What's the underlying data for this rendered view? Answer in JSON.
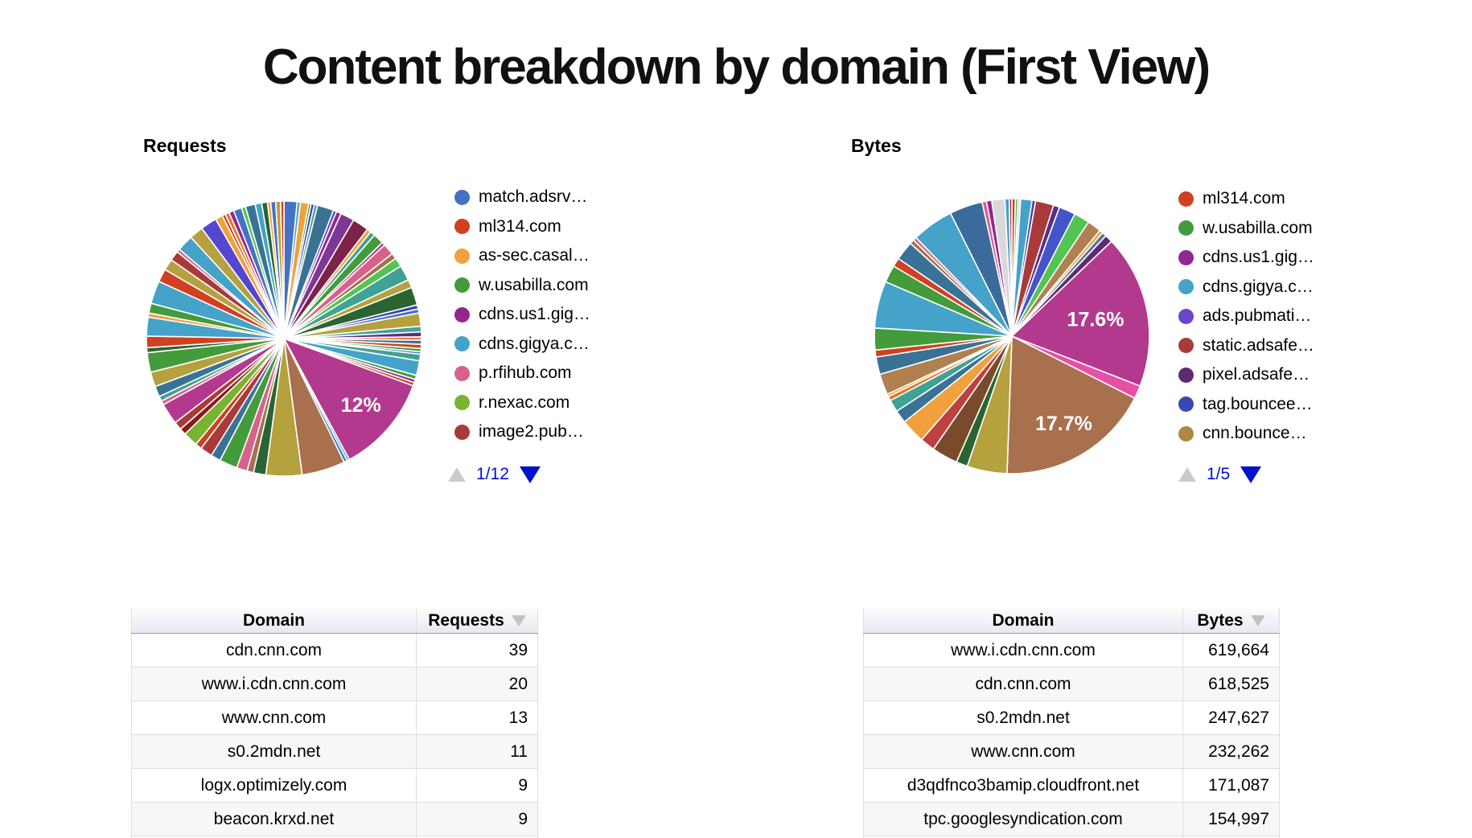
{
  "title": "Content breakdown by domain (First View)",
  "chart_data": [
    {
      "type": "pie",
      "title": "Requests",
      "legend_position": "right",
      "legend_page": "1/12",
      "legend": [
        {
          "label": "match.adsrv…",
          "color": "#4472C4"
        },
        {
          "label": "ml314.com",
          "color": "#CF4120"
        },
        {
          "label": "as-sec.casal…",
          "color": "#F0A13C"
        },
        {
          "label": "w.usabilla.com",
          "color": "#449B3B"
        },
        {
          "label": "cdns.us1.gig…",
          "color": "#94278F"
        },
        {
          "label": "cdns.gigya.c…",
          "color": "#45A2C9"
        },
        {
          "label": "p.rfihub.com",
          "color": "#D8618C"
        },
        {
          "label": "r.nexac.com",
          "color": "#79B430"
        },
        {
          "label": "image2.pub…",
          "color": "#A93A3A"
        }
      ],
      "shown_slice_labels": [
        "12%"
      ],
      "slices": [
        [
          1.6,
          "#4472C4"
        ],
        [
          0.4,
          "#45A2C9"
        ],
        [
          1.0,
          "#F0A13C"
        ],
        [
          0.3,
          "#449B3B"
        ],
        [
          0.4,
          "#3B3EAC"
        ],
        [
          0.4,
          "#3FA294"
        ],
        [
          2.0,
          "#3A7296"
        ],
        [
          0.4,
          "#5546D0"
        ],
        [
          0.6,
          "#94278F"
        ],
        [
          1.7,
          "#7E3794"
        ],
        [
          2.0,
          "#7D2248"
        ],
        [
          0.5,
          "#F0A13C"
        ],
        [
          0.6,
          "#3FA294"
        ],
        [
          1.3,
          "#449B3B"
        ],
        [
          0.4,
          "#B3398E"
        ],
        [
          1.4,
          "#D8618C"
        ],
        [
          0.7,
          "#A9704E"
        ],
        [
          1.1,
          "#52C452"
        ],
        [
          1.9,
          "#3FA294"
        ],
        [
          1.0,
          "#B5A13D"
        ],
        [
          2.2,
          "#2A6431"
        ],
        [
          0.5,
          "#3B3EAC"
        ],
        [
          0.5,
          "#4472C4"
        ],
        [
          1.6,
          "#B5A13D"
        ],
        [
          0.7,
          "#43A195"
        ],
        [
          0.6,
          "#5B2D82"
        ],
        [
          0.4,
          "#E0762C"
        ],
        [
          0.5,
          "#3A7296"
        ],
        [
          0.5,
          "#CF4120"
        ],
        [
          0.4,
          "#449B3B"
        ],
        [
          0.3,
          "#4472C4"
        ],
        [
          0.8,
          "#3FA294"
        ],
        [
          1.8,
          "#45A2C9"
        ],
        [
          0.5,
          "#449B3B"
        ],
        [
          0.4,
          "#94278F"
        ],
        [
          0.4,
          "#CF4120"
        ],
        [
          12.0,
          "#B3398E",
          "12%",
          0.74
        ],
        [
          0.3,
          "#45A2C9"
        ],
        [
          0.4,
          "#4472C4"
        ],
        [
          5.3,
          "#A9704E"
        ],
        [
          4.4,
          "#B5A13D"
        ],
        [
          1.5,
          "#2A6431"
        ],
        [
          0.8,
          "#A9704E"
        ],
        [
          1.3,
          "#D8618C"
        ],
        [
          2.2,
          "#449B3B"
        ],
        [
          1.2,
          "#3A7296"
        ],
        [
          1.5,
          "#A93A3A"
        ],
        [
          0.8,
          "#CF4120"
        ],
        [
          1.8,
          "#79B430"
        ],
        [
          0.8,
          "#8B1A1A"
        ],
        [
          1.0,
          "#A93A3A"
        ],
        [
          2.6,
          "#B3398E"
        ],
        [
          0.5,
          "#D8618C"
        ],
        [
          0.6,
          "#3FA294"
        ],
        [
          1.3,
          "#3A7296"
        ],
        [
          1.8,
          "#B5A13D"
        ],
        [
          2.4,
          "#449B3B"
        ],
        [
          0.6,
          "#2A6431"
        ],
        [
          1.4,
          "#CF4120"
        ],
        [
          2.3,
          "#45A2C9"
        ],
        [
          0.5,
          "#F0A13C"
        ],
        [
          1.2,
          "#449B3B"
        ],
        [
          2.8,
          "#45A2C9"
        ],
        [
          1.6,
          "#CF4120"
        ],
        [
          1.4,
          "#B5A13D"
        ],
        [
          1.2,
          "#A93A3A"
        ],
        [
          0.4,
          "#D8618C"
        ],
        [
          2.0,
          "#45A2C9"
        ],
        [
          1.7,
          "#B5A13D"
        ],
        [
          2.0,
          "#5546D0"
        ],
        [
          0.9,
          "#F0A13C"
        ],
        [
          0.4,
          "#CF4120"
        ],
        [
          0.5,
          "#E0762C"
        ],
        [
          0.6,
          "#94278F"
        ],
        [
          1.0,
          "#4472C4"
        ],
        [
          0.5,
          "#52C452"
        ],
        [
          1.2,
          "#3A7296"
        ],
        [
          0.8,
          "#45A2C9"
        ],
        [
          0.7,
          "#2A6431"
        ],
        [
          0.4,
          "#F0A13C"
        ],
        [
          0.6,
          "#4472C4"
        ],
        [
          0.6,
          "#B5A13D"
        ],
        [
          0.4,
          "#CF4120"
        ]
      ]
    },
    {
      "type": "pie",
      "title": "Bytes",
      "legend_position": "right",
      "legend_page": "1/5",
      "legend": [
        {
          "label": "ml314.com",
          "color": "#CF4120"
        },
        {
          "label": "w.usabilla.com",
          "color": "#449B3B"
        },
        {
          "label": "cdns.us1.gig…",
          "color": "#94278F"
        },
        {
          "label": "cdns.gigya.c…",
          "color": "#45A2C9"
        },
        {
          "label": "ads.pubmati…",
          "color": "#6A46C8"
        },
        {
          "label": "static.adsafe…",
          "color": "#A93A3A"
        },
        {
          "label": "pixel.adsafe…",
          "color": "#5E2B73"
        },
        {
          "label": "tag.bouncee…",
          "color": "#3949B3"
        },
        {
          "label": "cnn.bounce…",
          "color": "#B08844"
        }
      ],
      "shown_slice_labels": [
        "17.6%",
        "17.7%"
      ],
      "slices": [
        [
          0.4,
          "#CF4120"
        ],
        [
          0.3,
          "#52C452"
        ],
        [
          0.3,
          "#D9D9D9"
        ],
        [
          1.3,
          "#45A2C9"
        ],
        [
          0.4,
          "#3B3EAC"
        ],
        [
          2.1,
          "#A93A3A"
        ],
        [
          0.7,
          "#5B2D82"
        ],
        [
          1.9,
          "#4355C8"
        ],
        [
          1.8,
          "#52C452"
        ],
        [
          1.6,
          "#B08050"
        ],
        [
          0.4,
          "#F0A13C"
        ],
        [
          0.5,
          "#5574A6"
        ],
        [
          0.9,
          "#5E2B73"
        ],
        [
          17.6,
          "#B3398E",
          "17.6%",
          0.62
        ],
        [
          1.5,
          "#E84FA5"
        ],
        [
          17.7,
          "#A9704E",
          "17.7%",
          0.74
        ],
        [
          4.6,
          "#B5A13D"
        ],
        [
          1.3,
          "#2A6431"
        ],
        [
          3.0,
          "#7A4B2B"
        ],
        [
          1.7,
          "#BE4040"
        ],
        [
          2.8,
          "#F0A13C"
        ],
        [
          1.5,
          "#3A7296"
        ],
        [
          1.4,
          "#3FA294"
        ],
        [
          0.5,
          "#E0762C"
        ],
        [
          0.3,
          "#F0A13C"
        ],
        [
          2.4,
          "#B08050"
        ],
        [
          2.0,
          "#3A7296"
        ],
        [
          0.8,
          "#CF4120"
        ],
        [
          2.5,
          "#449B3B"
        ],
        [
          5.4,
          "#45A2C9"
        ],
        [
          2.0,
          "#449B3B"
        ],
        [
          1.0,
          "#CF4120"
        ],
        [
          2.2,
          "#3A7296"
        ],
        [
          0.5,
          "#A9704E"
        ],
        [
          0.4,
          "#D8618C"
        ],
        [
          4.8,
          "#45A2C9"
        ],
        [
          3.8,
          "#3A6B9B"
        ],
        [
          0.5,
          "#D8618C"
        ],
        [
          0.6,
          "#94278F"
        ],
        [
          1.5,
          "#D9D9D9"
        ],
        [
          0.5,
          "#45A2C9"
        ],
        [
          0.3,
          "#A93A3A"
        ]
      ]
    }
  ],
  "tables": {
    "requests": {
      "headers": [
        "Domain",
        "Requests"
      ],
      "sorted_by": "Requests",
      "rows": [
        [
          "cdn.cnn.com",
          "39"
        ],
        [
          "www.i.cdn.cnn.com",
          "20"
        ],
        [
          "www.cnn.com",
          "13"
        ],
        [
          "s0.2mdn.net",
          "11"
        ],
        [
          "logx.optimizely.com",
          "9"
        ],
        [
          "beacon.krxd.net",
          "9"
        ]
      ]
    },
    "bytes": {
      "headers": [
        "Domain",
        "Bytes"
      ],
      "sorted_by": "Bytes",
      "rows": [
        [
          "www.i.cdn.cnn.com",
          "619,664"
        ],
        [
          "cdn.cnn.com",
          "618,525"
        ],
        [
          "s0.2mdn.net",
          "247,627"
        ],
        [
          "www.cnn.com",
          "232,262"
        ],
        [
          "d3qdfnco3bamip.cloudfront.net",
          "171,087"
        ],
        [
          "tpc.googlesyndication.com",
          "154,997"
        ]
      ]
    }
  }
}
